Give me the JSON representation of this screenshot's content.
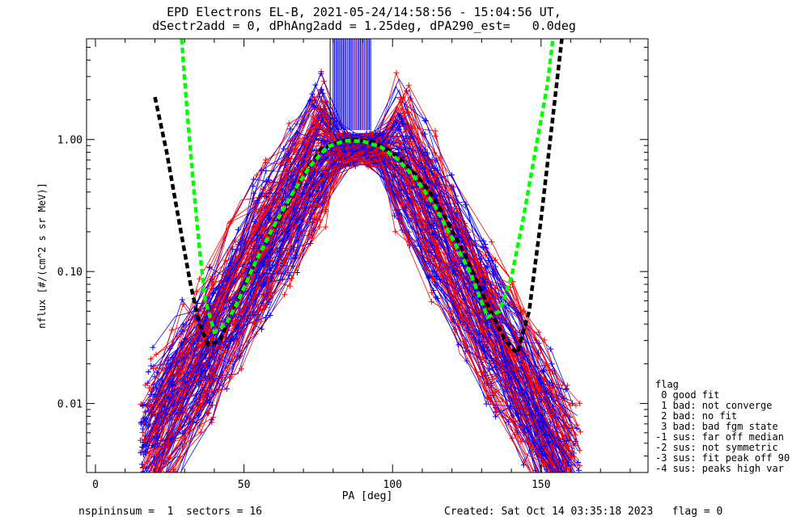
{
  "chart_data": {
    "type": "line",
    "title_line1": "EPD Electrons EL-B, 2021-05-24/14:58:56 - 15:04:56 UT,",
    "title_line2": "dSectr2add = 0, dPhAng2add = 1.25deg, dPA290_est=   0.0deg",
    "xlabel": "PA [deg]",
    "ylabel": "nflux [#/(cm^2 s sr MeV)]",
    "xlim": [
      -3,
      186
    ],
    "ylim": [
      0.003,
      5.8
    ],
    "yscale": "log",
    "x_ticks": [
      0,
      50,
      100,
      150
    ],
    "x_tick_labels": [
      "0",
      "50",
      "100",
      "150"
    ],
    "y_ticks": [
      0.01,
      0.1,
      1.0
    ],
    "y_tick_labels": [
      "0.01",
      "0.10",
      "1.00"
    ],
    "fit_curves": [
      {
        "color": "#000000",
        "points": [
          [
            20,
            2.1
          ],
          [
            24,
            0.8
          ],
          [
            28,
            0.25
          ],
          [
            32,
            0.08
          ],
          [
            35,
            0.04
          ],
          [
            38,
            0.028
          ],
          [
            42,
            0.03
          ],
          [
            46,
            0.05
          ],
          [
            52,
            0.1
          ],
          [
            58,
            0.18
          ],
          [
            64,
            0.3
          ],
          [
            70,
            0.55
          ],
          [
            76,
            0.85
          ],
          [
            82,
            0.97
          ],
          [
            88,
            1.0
          ],
          [
            94,
            0.95
          ],
          [
            100,
            0.8
          ],
          [
            106,
            0.6
          ],
          [
            112,
            0.42
          ],
          [
            118,
            0.25
          ],
          [
            124,
            0.14
          ],
          [
            130,
            0.07
          ],
          [
            134,
            0.045
          ],
          [
            138,
            0.03
          ],
          [
            142,
            0.024
          ],
          [
            146,
            0.05
          ],
          [
            150,
            0.25
          ],
          [
            154,
            1.5
          ],
          [
            157,
            5.8
          ]
        ]
      },
      {
        "color": "#00ff00",
        "points": [
          [
            29,
            5.8
          ],
          [
            31,
            1.5
          ],
          [
            33,
            0.45
          ],
          [
            35,
            0.15
          ],
          [
            37,
            0.06
          ],
          [
            40,
            0.035
          ],
          [
            44,
            0.04
          ],
          [
            48,
            0.06
          ],
          [
            54,
            0.12
          ],
          [
            60,
            0.22
          ],
          [
            66,
            0.38
          ],
          [
            72,
            0.62
          ],
          [
            78,
            0.88
          ],
          [
            84,
            0.98
          ],
          [
            90,
            0.97
          ],
          [
            96,
            0.88
          ],
          [
            102,
            0.7
          ],
          [
            108,
            0.5
          ],
          [
            114,
            0.32
          ],
          [
            120,
            0.18
          ],
          [
            126,
            0.1
          ],
          [
            132,
            0.045
          ],
          [
            136,
            0.05
          ],
          [
            140,
            0.09
          ],
          [
            144,
            0.25
          ],
          [
            148,
            0.8
          ],
          [
            152,
            2.5
          ],
          [
            154,
            5.8
          ]
        ]
      }
    ],
    "data_series_colors": [
      "#0000ff",
      "#ff0000"
    ]
  },
  "legend": {
    "title": "flag",
    "items": [
      " 0 good fit",
      " 1 bad: not converge",
      " 2 bad: no fit",
      " 3 bad: bad fgm state",
      "-1 sus: far off median",
      "-2 sus: not symmetric",
      "-3 sus: fit peak off 90",
      "-4 sus: peaks high var"
    ]
  },
  "footer": {
    "left": "nspininsum =  1  sectors = 16",
    "right": "Created: Sat Oct 14 03:35:18 2023   flag = 0"
  }
}
